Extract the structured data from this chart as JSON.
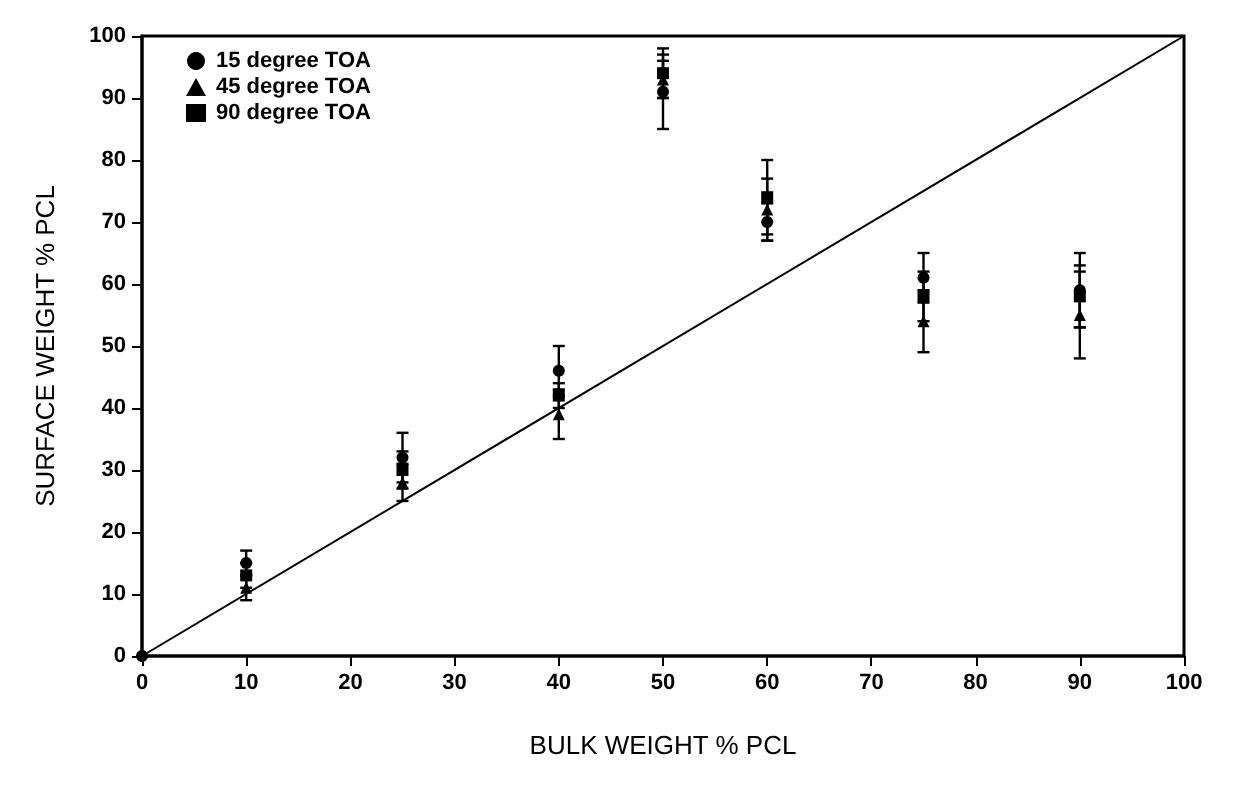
{
  "chart_data": {
    "type": "scatter",
    "xlabel": "BULK WEIGHT % PCL",
    "ylabel": "SURFACE WEIGHT % PCL",
    "x": [
      0,
      10,
      25,
      40,
      50,
      60,
      75,
      90
    ],
    "series": [
      {
        "name": "15 degree TOA",
        "color": "#000000",
        "marker": "circle",
        "values": [
          0,
          15,
          32,
          46,
          91,
          70,
          61,
          59
        ],
        "errors": [
          null,
          2,
          4,
          4,
          6,
          3,
          4,
          6
        ]
      },
      {
        "name": "45 degree TOA",
        "color": "#000000",
        "marker": "triangle",
        "values": [
          null,
          11,
          28,
          39,
          93,
          72,
          54,
          55
        ],
        "errors": [
          null,
          2,
          3,
          4,
          3,
          5,
          5,
          7
        ]
      },
      {
        "name": "90 degree TOA",
        "color": "#000000",
        "marker": "square",
        "values": [
          null,
          13,
          30,
          42,
          94,
          74,
          58,
          58
        ],
        "errors": [
          null,
          2,
          3,
          2,
          4,
          6,
          4,
          5
        ]
      },
      {
        "type": "line",
        "color": "#000000",
        "marker": "none",
        "x": [
          0,
          100
        ],
        "values": [
          0,
          100
        ]
      }
    ],
    "xlim": [
      0,
      100
    ],
    "ylim": [
      0,
      100
    ],
    "xticks": [
      0,
      10,
      20,
      30,
      40,
      50,
      60,
      70,
      80,
      90,
      100
    ],
    "yticks": [
      0,
      10,
      20,
      30,
      40,
      50,
      60,
      70,
      80,
      90,
      100
    ],
    "grid": false,
    "legend": "top left"
  }
}
